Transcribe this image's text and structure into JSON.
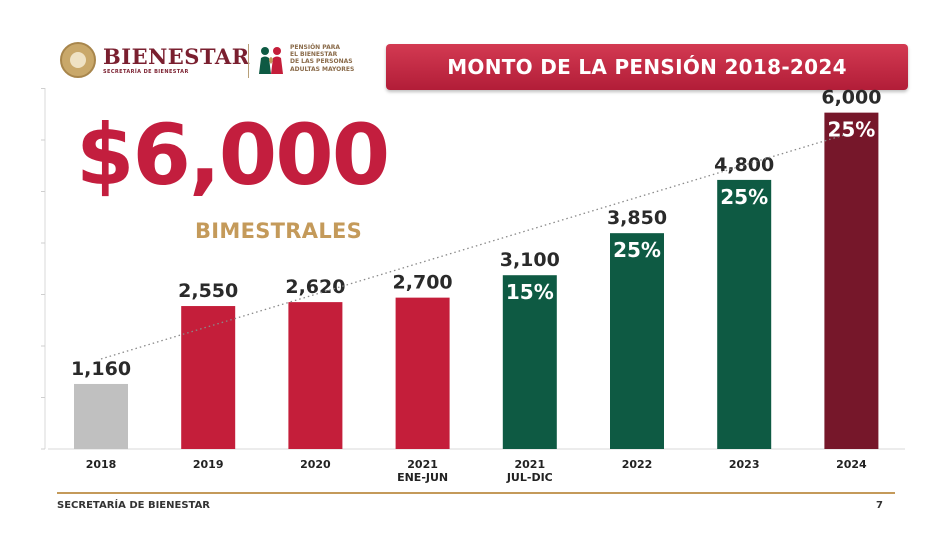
{
  "header": {
    "logo_name": "BIENESTAR",
    "logo_subtitle": "SECRETARÍA DE BIENESTAR",
    "pension_lines": [
      "PENSIÓN PARA",
      "EL BIENESTAR",
      "DE LAS PERSONAS",
      "ADULTAS MAYORES"
    ],
    "title": "MONTO DE LA PENSIÓN 2018-2024"
  },
  "headline": {
    "amount": "$6,000",
    "period": "BIMESTRALES"
  },
  "footer": {
    "org": "SECRETARÍA DE BIENESTAR",
    "page": "7"
  },
  "colors": {
    "gray": "#c0c0c0",
    "red": "#c41e3a",
    "green": "#0e5a43",
    "maroon": "#76172a",
    "value_highlight": "#c2272d"
  },
  "chart_data": {
    "type": "bar",
    "title": "MONTO DE LA PENSIÓN 2018-2024",
    "categories": [
      "2018",
      "2019",
      "2020",
      "2021 ENE-JUN",
      "2021 JUL-DIC",
      "2022",
      "2023",
      "2024"
    ],
    "category_lines": [
      [
        "2018"
      ],
      [
        "2019"
      ],
      [
        "2020"
      ],
      [
        "2021",
        "ENE-JUN"
      ],
      [
        "2021",
        "JUL-DIC"
      ],
      [
        "2022"
      ],
      [
        "2023"
      ],
      [
        "2024"
      ]
    ],
    "values": [
      1160,
      2550,
      2620,
      2700,
      3100,
      3850,
      4800,
      6000
    ],
    "value_labels": [
      "1,160",
      "2,550",
      "2,620",
      "2,700",
      "3,100",
      "3,850",
      "4,800",
      "6,000"
    ],
    "increase_labels": [
      "",
      "",
      "",
      "",
      "15%",
      "25%",
      "25%",
      "25%"
    ],
    "bar_colors": [
      "gray",
      "red",
      "red",
      "red",
      "green",
      "green",
      "green",
      "maroon"
    ],
    "trendline": "dotted",
    "ylim": [
      0,
      6600
    ],
    "xlabel": "",
    "ylabel": "",
    "grid": false
  }
}
